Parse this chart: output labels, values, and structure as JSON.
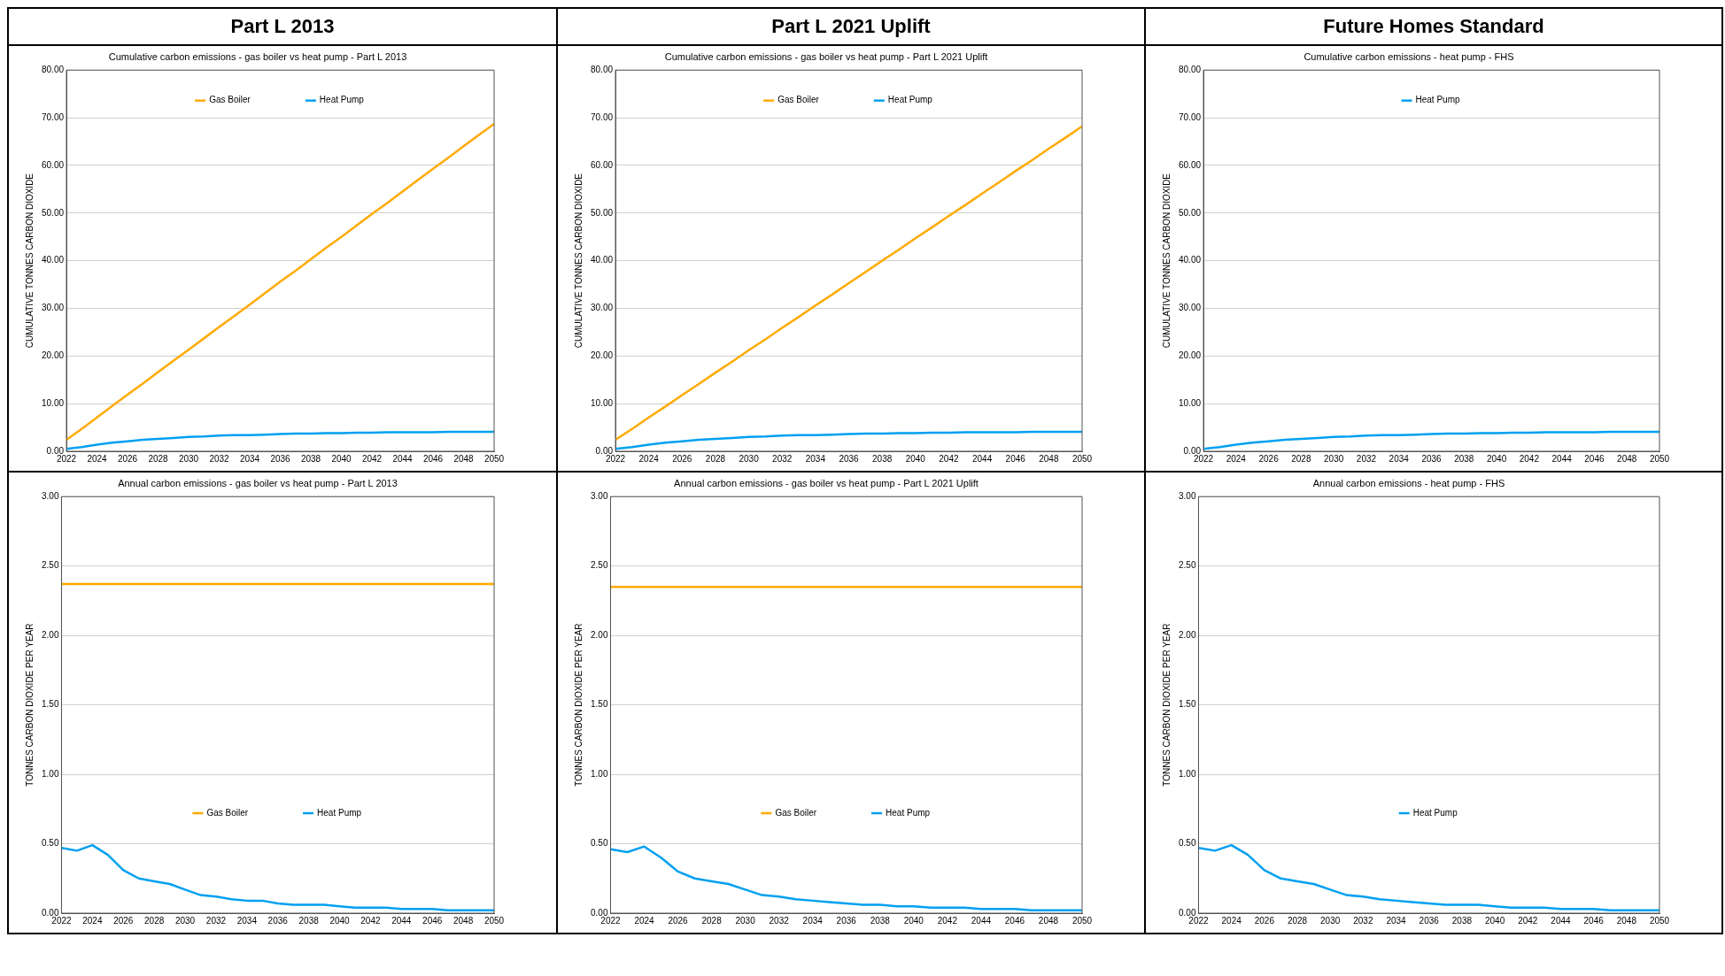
{
  "chart_data": [
    {
      "type": "line",
      "subtitle": "Part L 2013",
      "title": "Cumulative carbon emissions - gas boiler vs heat pump - Part L 2013",
      "ylabel": "CUMULATIVE TONNES CARBON DIOXIDE",
      "x": [
        2022,
        2023,
        2024,
        2025,
        2026,
        2027,
        2028,
        2029,
        2030,
        2031,
        2032,
        2033,
        2034,
        2035,
        2036,
        2037,
        2038,
        2039,
        2040,
        2041,
        2042,
        2043,
        2044,
        2045,
        2046,
        2047,
        2048,
        2049,
        2050
      ],
      "series": [
        {
          "name": "Gas Boiler",
          "color": "#ffaa00",
          "values": [
            2.4,
            4.7,
            7.1,
            9.5,
            11.9,
            14.2,
            16.6,
            19.0,
            21.3,
            23.7,
            26.1,
            28.4,
            30.8,
            33.2,
            35.6,
            37.9,
            40.3,
            42.7,
            45.0,
            47.4,
            49.8,
            52.1,
            54.5,
            56.9,
            59.3,
            61.6,
            64.0,
            66.4,
            68.7
          ]
        },
        {
          "name": "Heat Pump",
          "color": "#00a0f0",
          "values": [
            0.5,
            0.9,
            1.4,
            1.8,
            2.1,
            2.4,
            2.6,
            2.8,
            3.0,
            3.1,
            3.3,
            3.4,
            3.4,
            3.5,
            3.6,
            3.7,
            3.7,
            3.8,
            3.8,
            3.9,
            3.9,
            4.0,
            4.0,
            4.0,
            4.0,
            4.1,
            4.1,
            4.1,
            4.1
          ]
        }
      ],
      "xlim": [
        2022,
        2050
      ],
      "xticks": [
        2022,
        2024,
        2026,
        2028,
        2030,
        2032,
        2034,
        2036,
        2038,
        2040,
        2042,
        2044,
        2046,
        2048,
        2050
      ],
      "ylim": [
        0,
        80
      ],
      "yticks": [
        {
          "value": 0,
          "label": "0.00"
        },
        {
          "value": 10,
          "label": "10.00"
        },
        {
          "value": 20,
          "label": "20.00"
        },
        {
          "value": 30,
          "label": "30.00"
        },
        {
          "value": 40,
          "label": "40.00"
        },
        {
          "value": 50,
          "label": "50.00"
        },
        {
          "value": 60,
          "label": "60.00"
        },
        {
          "value": 70,
          "label": "70.00"
        },
        {
          "value": 80,
          "label": "80.00"
        }
      ],
      "grid": "y",
      "legend": "top"
    },
    {
      "type": "line",
      "subtitle": "Part L 2021 Uplift",
      "title": "Cumulative carbon emissions - gas boiler vs heat pump - Part L 2021 Uplift",
      "ylabel": "CUMULATIVE TONNES CARBON DIOXIDE",
      "x": [
        2022,
        2023,
        2024,
        2025,
        2026,
        2027,
        2028,
        2029,
        2030,
        2031,
        2032,
        2033,
        2034,
        2035,
        2036,
        2037,
        2038,
        2039,
        2040,
        2041,
        2042,
        2043,
        2044,
        2045,
        2046,
        2047,
        2048,
        2049,
        2050
      ],
      "series": [
        {
          "name": "Gas Boiler",
          "color": "#ffaa00",
          "values": [
            2.4,
            4.7,
            7.1,
            9.4,
            11.8,
            14.1,
            16.5,
            18.8,
            21.2,
            23.5,
            25.9,
            28.2,
            30.6,
            32.9,
            35.3,
            37.6,
            40.0,
            42.3,
            44.7,
            47.0,
            49.4,
            51.7,
            54.1,
            56.4,
            58.8,
            61.1,
            63.5,
            65.8,
            68.2
          ]
        },
        {
          "name": "Heat Pump",
          "color": "#00a0f0",
          "values": [
            0.5,
            0.9,
            1.4,
            1.8,
            2.1,
            2.4,
            2.6,
            2.8,
            3.0,
            3.1,
            3.3,
            3.4,
            3.4,
            3.5,
            3.6,
            3.7,
            3.7,
            3.8,
            3.8,
            3.9,
            3.9,
            4.0,
            4.0,
            4.0,
            4.0,
            4.1,
            4.1,
            4.1,
            4.1
          ]
        }
      ],
      "xlim": [
        2022,
        2050
      ],
      "xticks": [
        2022,
        2024,
        2026,
        2028,
        2030,
        2032,
        2034,
        2036,
        2038,
        2040,
        2042,
        2044,
        2046,
        2048,
        2050
      ],
      "ylim": [
        0,
        80
      ],
      "yticks": [
        {
          "value": 0,
          "label": "0.00"
        },
        {
          "value": 10,
          "label": "10.00"
        },
        {
          "value": 20,
          "label": "20.00"
        },
        {
          "value": 30,
          "label": "30.00"
        },
        {
          "value": 40,
          "label": "40.00"
        },
        {
          "value": 50,
          "label": "50.00"
        },
        {
          "value": 60,
          "label": "60.00"
        },
        {
          "value": 70,
          "label": "70.00"
        },
        {
          "value": 80,
          "label": "80.00"
        }
      ],
      "grid": "y",
      "legend": "top"
    },
    {
      "type": "line",
      "subtitle": "Future Homes Standard",
      "title": "Cumulative carbon emissions - heat pump - FHS",
      "ylabel": "CUMULATIVE TONNES CARBON DIOXIDE",
      "x": [
        2022,
        2023,
        2024,
        2025,
        2026,
        2027,
        2028,
        2029,
        2030,
        2031,
        2032,
        2033,
        2034,
        2035,
        2036,
        2037,
        2038,
        2039,
        2040,
        2041,
        2042,
        2043,
        2044,
        2045,
        2046,
        2047,
        2048,
        2049,
        2050
      ],
      "series": [
        {
          "name": "Heat Pump",
          "color": "#00a0f0",
          "values": [
            0.5,
            0.9,
            1.4,
            1.8,
            2.1,
            2.4,
            2.6,
            2.8,
            3.0,
            3.1,
            3.3,
            3.4,
            3.4,
            3.5,
            3.6,
            3.7,
            3.7,
            3.8,
            3.8,
            3.9,
            3.9,
            4.0,
            4.0,
            4.0,
            4.0,
            4.1,
            4.1,
            4.1,
            4.1
          ]
        }
      ],
      "xlim": [
        2022,
        2050
      ],
      "xticks": [
        2022,
        2024,
        2026,
        2028,
        2030,
        2032,
        2034,
        2036,
        2038,
        2040,
        2042,
        2044,
        2046,
        2048,
        2050
      ],
      "ylim": [
        0,
        80
      ],
      "yticks": [
        {
          "value": 0,
          "label": "0.00"
        },
        {
          "value": 10,
          "label": "10.00"
        },
        {
          "value": 20,
          "label": "20.00"
        },
        {
          "value": 30,
          "label": "30.00"
        },
        {
          "value": 40,
          "label": "40.00"
        },
        {
          "value": 50,
          "label": "50.00"
        },
        {
          "value": 60,
          "label": "60.00"
        },
        {
          "value": 70,
          "label": "70.00"
        },
        {
          "value": 80,
          "label": "80.00"
        }
      ],
      "grid": "y",
      "legend": "top"
    },
    {
      "type": "line",
      "title": "Annual carbon emissions - gas boiler vs heat pump - Part L 2013",
      "ylabel": "TONNES CARBON DIOXIDE PER YEAR",
      "x": [
        2022,
        2023,
        2024,
        2025,
        2026,
        2027,
        2028,
        2029,
        2030,
        2031,
        2032,
        2033,
        2034,
        2035,
        2036,
        2037,
        2038,
        2039,
        2040,
        2041,
        2042,
        2043,
        2044,
        2045,
        2046,
        2047,
        2048,
        2049,
        2050
      ],
      "series": [
        {
          "name": "Gas Boiler",
          "color": "#ffaa00",
          "values": [
            2.37,
            2.37,
            2.37,
            2.37,
            2.37,
            2.37,
            2.37,
            2.37,
            2.37,
            2.37,
            2.37,
            2.37,
            2.37,
            2.37,
            2.37,
            2.37,
            2.37,
            2.37,
            2.37,
            2.37,
            2.37,
            2.37,
            2.37,
            2.37,
            2.37,
            2.37,
            2.37,
            2.37,
            2.37
          ]
        },
        {
          "name": "Heat Pump",
          "color": "#00a0f0",
          "values": [
            0.47,
            0.45,
            0.49,
            0.42,
            0.31,
            0.25,
            0.23,
            0.21,
            0.17,
            0.13,
            0.12,
            0.1,
            0.09,
            0.09,
            0.07,
            0.06,
            0.06,
            0.06,
            0.05,
            0.04,
            0.04,
            0.04,
            0.03,
            0.03,
            0.03,
            0.02,
            0.02,
            0.02,
            0.02
          ]
        }
      ],
      "xlim": [
        2022,
        2050
      ],
      "xticks": [
        2022,
        2024,
        2026,
        2028,
        2030,
        2032,
        2034,
        2036,
        2038,
        2040,
        2042,
        2044,
        2046,
        2048,
        2050
      ],
      "ylim": [
        0,
        3
      ],
      "yticks": [
        {
          "value": 0,
          "label": "0.00"
        },
        {
          "value": 0.5,
          "label": "0.50"
        },
        {
          "value": 1,
          "label": "1.00"
        },
        {
          "value": 1.5,
          "label": "1.50"
        },
        {
          "value": 2,
          "label": "2.00"
        },
        {
          "value": 2.5,
          "label": "2.50"
        },
        {
          "value": 3,
          "label": "3.00"
        }
      ],
      "grid": "y",
      "legend": "bottom"
    },
    {
      "type": "line",
      "title": "Annual carbon emissions - gas boiler vs heat pump - Part L 2021 Uplift",
      "ylabel": "TONNES CARBON DIOXIDE PER YEAR",
      "x": [
        2022,
        2023,
        2024,
        2025,
        2026,
        2027,
        2028,
        2029,
        2030,
        2031,
        2032,
        2033,
        2034,
        2035,
        2036,
        2037,
        2038,
        2039,
        2040,
        2041,
        2042,
        2043,
        2044,
        2045,
        2046,
        2047,
        2048,
        2049,
        2050
      ],
      "series": [
        {
          "name": "Gas Boiler",
          "color": "#ffaa00",
          "values": [
            2.35,
            2.35,
            2.35,
            2.35,
            2.35,
            2.35,
            2.35,
            2.35,
            2.35,
            2.35,
            2.35,
            2.35,
            2.35,
            2.35,
            2.35,
            2.35,
            2.35,
            2.35,
            2.35,
            2.35,
            2.35,
            2.35,
            2.35,
            2.35,
            2.35,
            2.35,
            2.35,
            2.35,
            2.35
          ]
        },
        {
          "name": "Heat Pump",
          "color": "#00a0f0",
          "values": [
            0.46,
            0.44,
            0.48,
            0.4,
            0.3,
            0.25,
            0.23,
            0.21,
            0.17,
            0.13,
            0.12,
            0.1,
            0.09,
            0.08,
            0.07,
            0.06,
            0.06,
            0.05,
            0.05,
            0.04,
            0.04,
            0.04,
            0.03,
            0.03,
            0.03,
            0.02,
            0.02,
            0.02,
            0.02
          ]
        }
      ],
      "xlim": [
        2022,
        2050
      ],
      "xticks": [
        2022,
        2024,
        2026,
        2028,
        2030,
        2032,
        2034,
        2036,
        2038,
        2040,
        2042,
        2044,
        2046,
        2048,
        2050
      ],
      "ylim": [
        0,
        3
      ],
      "yticks": [
        {
          "value": 0,
          "label": "0.00"
        },
        {
          "value": 0.5,
          "label": "0.50"
        },
        {
          "value": 1,
          "label": "1.00"
        },
        {
          "value": 1.5,
          "label": "1.50"
        },
        {
          "value": 2,
          "label": "2.00"
        },
        {
          "value": 2.5,
          "label": "2.50"
        },
        {
          "value": 3,
          "label": "3.00"
        }
      ],
      "grid": "y",
      "legend": "bottom"
    },
    {
      "type": "line",
      "title": "Annual carbon emissions - heat pump - FHS",
      "ylabel": "TONNES CARBON DIOXIDE PER YEAR",
      "x": [
        2022,
        2023,
        2024,
        2025,
        2026,
        2027,
        2028,
        2029,
        2030,
        2031,
        2032,
        2033,
        2034,
        2035,
        2036,
        2037,
        2038,
        2039,
        2040,
        2041,
        2042,
        2043,
        2044,
        2045,
        2046,
        2047,
        2048,
        2049,
        2050
      ],
      "series": [
        {
          "name": "Heat Pump",
          "color": "#00a0f0",
          "values": [
            0.47,
            0.45,
            0.49,
            0.42,
            0.31,
            0.25,
            0.23,
            0.21,
            0.17,
            0.13,
            0.12,
            0.1,
            0.09,
            0.08,
            0.07,
            0.06,
            0.06,
            0.06,
            0.05,
            0.04,
            0.04,
            0.04,
            0.03,
            0.03,
            0.03,
            0.02,
            0.02,
            0.02,
            0.02
          ]
        }
      ],
      "xlim": [
        2022,
        2050
      ],
      "xticks": [
        2022,
        2024,
        2026,
        2028,
        2030,
        2032,
        2034,
        2036,
        2038,
        2040,
        2042,
        2044,
        2046,
        2048,
        2050
      ],
      "ylim": [
        0,
        3
      ],
      "yticks": [
        {
          "value": 0,
          "label": "0.00"
        },
        {
          "value": 0.5,
          "label": "0.50"
        },
        {
          "value": 1,
          "label": "1.00"
        },
        {
          "value": 1.5,
          "label": "1.50"
        },
        {
          "value": 2,
          "label": "2.00"
        },
        {
          "value": 2.5,
          "label": "2.50"
        },
        {
          "value": 3,
          "label": "3.00"
        }
      ],
      "grid": "y",
      "legend": "bottom"
    }
  ]
}
